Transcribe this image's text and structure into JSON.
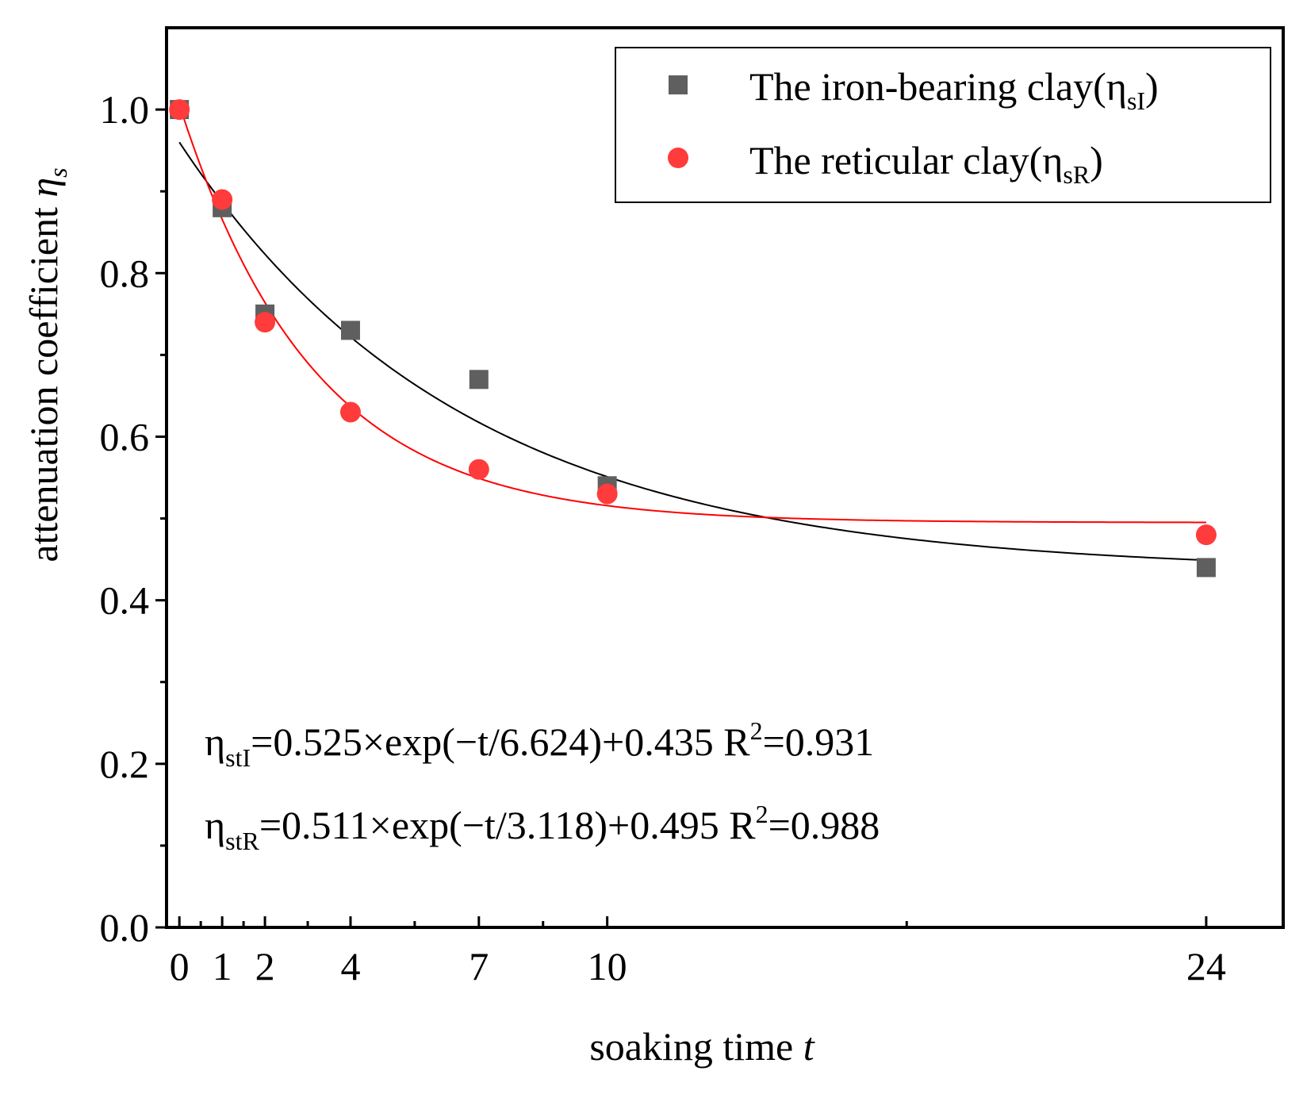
{
  "chart_data": {
    "type": "scatter",
    "title": "",
    "xlabel": "soaking time",
    "xlabel_var": "t",
    "ylabel": "attenuation coefficient",
    "ylabel_var": "η",
    "ylabel_var_sub": "s",
    "xlim": [
      -0.3,
      25.8
    ],
    "ylim": [
      0.0,
      1.1
    ],
    "x_ticks": [
      0,
      1,
      2,
      4,
      7,
      10,
      24
    ],
    "x_tick_labels": [
      "0",
      "1",
      "2",
      "4",
      "7",
      "10",
      "24"
    ],
    "x_minor_ticks": [
      0.5,
      1.5,
      3,
      5.5,
      8.5,
      17
    ],
    "y_ticks": [
      0.0,
      0.2,
      0.4,
      0.6,
      0.8,
      1.0
    ],
    "y_tick_labels": [
      "0.0",
      "0.2",
      "0.4",
      "0.6",
      "0.8",
      "1.0"
    ],
    "y_minor_ticks": [
      0.1,
      0.3,
      0.5,
      0.7,
      0.9
    ],
    "grid": false,
    "legend_position": "top-right",
    "series": [
      {
        "name": "The iron-bearing clay(η",
        "name_sub": "sI",
        "name_suffix": ")",
        "marker": "square",
        "color": "#5f5f5f",
        "fit_color": "#000000",
        "x": [
          0,
          1,
          2,
          4,
          7,
          10,
          24
        ],
        "y": [
          1.0,
          0.88,
          0.75,
          0.73,
          0.67,
          0.54,
          0.44
        ],
        "fit": {
          "A": 0.525,
          "tau": 6.624,
          "y0": 0.435
        }
      },
      {
        "name": "The reticular clay(η",
        "name_sub": "sR",
        "name_suffix": ")",
        "marker": "circle",
        "color": "#ff3b3b",
        "fit_color": "#ff0000",
        "x": [
          0,
          1,
          2,
          4,
          7,
          10,
          24
        ],
        "y": [
          1.0,
          0.89,
          0.74,
          0.63,
          0.56,
          0.53,
          0.48
        ],
        "fit": {
          "A": 0.511,
          "tau": 3.118,
          "y0": 0.495
        }
      }
    ],
    "annotations": [
      {
        "eta": "η",
        "sub": "stI",
        "body": "=0.525×exp(−t/6.624)+0.435  R",
        "sup": "2",
        "tail": "=0.931"
      },
      {
        "eta": "η",
        "sub": "stR",
        "body": "=0.511×exp(−t/3.118)+0.495  R",
        "sup": "2",
        "tail": "=0.988"
      }
    ]
  }
}
